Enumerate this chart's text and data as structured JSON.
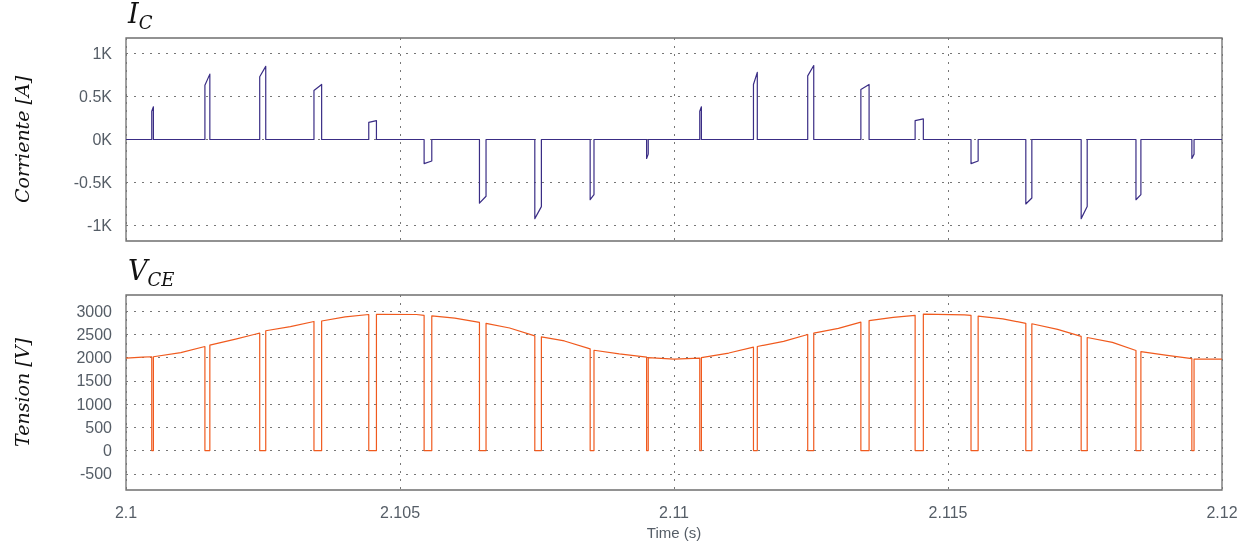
{
  "chart_data": [
    {
      "type": "line",
      "title": "I$_{C}$",
      "ylabel": "Corriente [A]",
      "grid": true,
      "tick_labels": "y",
      "xlim": [
        2.1,
        2.12
      ],
      "xticks": [
        2.1,
        2.105,
        2.11,
        2.115,
        2.12
      ],
      "ylim": [
        -1180,
        1180
      ],
      "yticks": [
        {
          "value": -1000,
          "label": "-1K"
        },
        {
          "value": -500,
          "label": "-0.5K"
        },
        {
          "value": 0,
          "label": "0K"
        },
        {
          "value": 500,
          "label": "0.5K"
        },
        {
          "value": 1000,
          "label": "1K"
        }
      ],
      "series": [
        {
          "color": "#3a2d85",
          "x": [
            2.1,
            2.10047,
            2.10047,
            2.1005,
            2.1005,
            2.10144,
            2.10144,
            2.10153,
            2.10153,
            2.10244,
            2.10244,
            2.10255,
            2.10255,
            2.10343,
            2.10343,
            2.10357,
            2.10357,
            2.10443,
            2.10443,
            2.10457,
            2.10457,
            2.10544,
            2.10544,
            2.10558,
            2.10558,
            2.10645,
            2.10645,
            2.10657,
            2.10657,
            2.10746,
            2.10746,
            2.10758,
            2.10758,
            2.10847,
            2.10847,
            2.10854,
            2.10854,
            2.1095,
            2.1095,
            2.10953,
            2.10953,
            2.11047,
            2.11047,
            2.1105,
            2.1105,
            2.11145,
            2.11145,
            2.11152,
            2.11152,
            2.11244,
            2.11244,
            2.11255,
            2.11255,
            2.11341,
            2.11341,
            2.11356,
            2.11356,
            2.1144,
            2.1144,
            2.11455,
            2.11455,
            2.11542,
            2.11542,
            2.11555,
            2.11555,
            2.11642,
            2.11642,
            2.11653,
            2.11653,
            2.11743,
            2.11743,
            2.11754,
            2.11754,
            2.11843,
            2.11843,
            2.11852,
            2.11852,
            2.11945,
            2.11945,
            2.11949,
            2.11949,
            2.12
          ],
          "values": [
            0,
            0,
            330,
            380,
            0,
            0,
            630,
            760,
            0,
            0,
            730,
            850,
            0,
            0,
            570,
            640,
            0,
            0,
            200,
            220,
            0,
            0,
            -280,
            -250,
            0,
            0,
            -740,
            -660,
            0,
            0,
            -920,
            -780,
            0,
            0,
            -700,
            -640,
            0,
            0,
            -220,
            -170,
            0,
            0,
            330,
            380,
            0,
            0,
            640,
            780,
            0,
            0,
            740,
            860,
            0,
            0,
            580,
            640,
            0,
            0,
            220,
            240,
            0,
            0,
            -280,
            -250,
            0,
            0,
            -750,
            -680,
            0,
            0,
            -920,
            -780,
            0,
            0,
            -700,
            -640,
            0,
            0,
            -220,
            -170,
            0,
            0
          ]
        }
      ]
    },
    {
      "type": "line",
      "title": "V$_{CE}$",
      "ylabel": "Tension [V]",
      "xlabel": "Time (s)",
      "grid": true,
      "xlim": [
        2.1,
        2.12
      ],
      "xticks": [
        2.1,
        2.105,
        2.11,
        2.115,
        2.12
      ],
      "ylim": [
        -850,
        3350
      ],
      "yticks": [
        -500,
        0,
        500,
        1000,
        1500,
        2000,
        2500,
        3000
      ],
      "series": [
        {
          "color": "#f05a1e",
          "x": [
            2.1,
            2.1003,
            2.10047,
            2.10047,
            2.1005,
            2.1005,
            2.101,
            2.10144,
            2.10144,
            2.10153,
            2.10153,
            2.102,
            2.10244,
            2.10244,
            2.10255,
            2.10255,
            2.103,
            2.10343,
            2.10343,
            2.10357,
            2.10357,
            2.104,
            2.10443,
            2.10443,
            2.10457,
            2.10457,
            2.1053,
            2.10544,
            2.10544,
            2.10558,
            2.10558,
            2.106,
            2.10645,
            2.10645,
            2.10657,
            2.10657,
            2.107,
            2.10746,
            2.10746,
            2.10758,
            2.10758,
            2.108,
            2.10847,
            2.10847,
            2.10854,
            2.10854,
            2.109,
            2.1095,
            2.1095,
            2.10953,
            2.10953,
            2.11,
            2.11047,
            2.11047,
            2.1105,
            2.1105,
            2.111,
            2.11145,
            2.11145,
            2.11152,
            2.11152,
            2.112,
            2.11244,
            2.11244,
            2.11255,
            2.11255,
            2.113,
            2.11341,
            2.11341,
            2.11356,
            2.11356,
            2.114,
            2.1144,
            2.1144,
            2.11455,
            2.11455,
            2.1153,
            2.11542,
            2.11542,
            2.11555,
            2.11555,
            2.116,
            2.11642,
            2.11642,
            2.11653,
            2.11653,
            2.117,
            2.11743,
            2.11743,
            2.11754,
            2.11754,
            2.118,
            2.11843,
            2.11843,
            2.11852,
            2.11852,
            2.119,
            2.11945,
            2.11945,
            2.11949,
            2.11949,
            2.12
          ],
          "values": [
            1990,
            2010,
            2020,
            0,
            0,
            2020,
            2110,
            2240,
            0,
            0,
            2270,
            2400,
            2530,
            0,
            0,
            2580,
            2670,
            2780,
            0,
            0,
            2790,
            2880,
            2930,
            0,
            0,
            2935,
            2930,
            2910,
            0,
            0,
            2900,
            2850,
            2760,
            0,
            0,
            2740,
            2640,
            2470,
            0,
            0,
            2450,
            2360,
            2190,
            0,
            0,
            2160,
            2080,
            2010,
            0,
            0,
            2000,
            1970,
            1990,
            0,
            0,
            2000,
            2100,
            2226,
            0,
            0,
            2240,
            2350,
            2500,
            0,
            0,
            2530,
            2630,
            2765,
            0,
            0,
            2800,
            2870,
            2913,
            0,
            0,
            2940,
            2920,
            2913,
            0,
            0,
            2895,
            2835,
            2740,
            0,
            0,
            2730,
            2610,
            2460,
            0,
            0,
            2435,
            2330,
            2155,
            0,
            0,
            2130,
            2050,
            1980,
            0,
            0,
            1970,
            1970
          ]
        }
      ]
    }
  ]
}
